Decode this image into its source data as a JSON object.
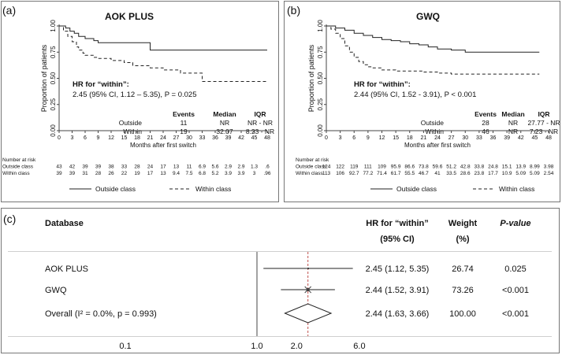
{
  "chart_data": [
    {
      "type": "line",
      "panel_label": "(a)",
      "title": "AOK PLUS",
      "xlabel": "Months after first switch",
      "ylabel": "Proportion of patients",
      "xlim": [
        0,
        48
      ],
      "ylim": [
        0,
        1
      ],
      "x_ticks": [
        "0",
        "3",
        "6",
        "9",
        "12",
        "15",
        "18",
        "21",
        "24",
        "27",
        "30",
        "33",
        "36",
        "39",
        "42",
        "45",
        "48"
      ],
      "y_ticks": [
        "0.00",
        "0.25",
        "0.50",
        "0.75",
        "1.00"
      ],
      "annotation": {
        "line1": "HR for “within”:",
        "line2": "2.45 (95% CI, 1.12 – 5.35), P = 0.025"
      },
      "stats_table": {
        "headers": [
          "Events",
          "Median",
          "IQR"
        ],
        "rows": [
          {
            "label": "Outside",
            "events": "11",
            "median": "NR",
            "iqr": "NR - NR"
          },
          {
            "label": "Within",
            "events": "19",
            "median": "32.07",
            "iqr": "8.23 - NR"
          }
        ]
      },
      "series": [
        {
          "name": "Outside class",
          "style": "solid",
          "x": [
            0,
            1.5,
            2.5,
            3.5,
            4.5,
            6,
            8,
            9,
            12,
            16,
            19,
            21,
            48
          ],
          "y": [
            1.0,
            0.98,
            0.95,
            0.93,
            0.9,
            0.88,
            0.86,
            0.84,
            0.84,
            0.84,
            0.84,
            0.77,
            0.77
          ]
        },
        {
          "name": "Within class",
          "style": "dashed",
          "x": [
            0,
            1,
            2,
            3,
            4,
            4.5,
            5.5,
            6,
            8,
            9,
            12,
            15,
            17,
            21,
            24,
            28,
            33,
            48
          ],
          "y": [
            1.0,
            0.95,
            0.9,
            0.85,
            0.8,
            0.77,
            0.74,
            0.72,
            0.7,
            0.69,
            0.67,
            0.65,
            0.62,
            0.6,
            0.58,
            0.55,
            0.47,
            0.47
          ]
        }
      ],
      "risk_table": {
        "title": "Number at risk",
        "rows": [
          {
            "label": "Outside class",
            "values": [
              "43",
              "42",
              "39",
              "39",
              "38",
              "33",
              "28",
              "24",
              "17",
              "13",
              "11",
              "6.9",
              "5.6",
              "2.9",
              "2.9",
              "1.3",
              ".6"
            ]
          },
          {
            "label": "Within class",
            "values": [
              "39",
              "39",
              "31",
              "28",
              "26",
              "22",
              "19",
              "17",
              "13",
              "9.4",
              "7.5",
              "6.8",
              "5.2",
              "3.9",
              "3.9",
              "3",
              ".96"
            ]
          }
        ]
      },
      "legend": [
        "Outside class",
        "Within class"
      ]
    },
    {
      "type": "line",
      "panel_label": "(b)",
      "title": "GWQ",
      "xlabel": "Months after first switch",
      "ylabel": "Proportion of patients",
      "xlim": [
        0,
        48
      ],
      "ylim": [
        0,
        1
      ],
      "x_ticks": [
        "0",
        "3",
        "6",
        "9",
        "12",
        "15",
        "18",
        "21",
        "24",
        "27",
        "30",
        "33",
        "36",
        "39",
        "42",
        "45",
        "48"
      ],
      "y_ticks": [
        "0.00",
        "0.25",
        "0.50",
        "0.75",
        "1.00"
      ],
      "annotation": {
        "line1": "HR for “within”:",
        "line2": "2.44 (95% CI, 1.52 - 3.91), P < 0.001"
      },
      "stats_table": {
        "headers": [
          "Events",
          "Median",
          "IQR"
        ],
        "rows": [
          {
            "label": "Outside",
            "events": "28",
            "median": "NR",
            "iqr": "27.77 - NR"
          },
          {
            "label": "Within",
            "events": "46",
            "median": "NR",
            "iqr": "7.23 - NR"
          }
        ]
      },
      "series": [
        {
          "name": "Outside class",
          "style": "solid",
          "x": [
            0,
            2,
            4,
            6,
            8,
            10,
            12,
            14,
            16,
            18,
            20,
            22,
            24,
            27,
            30,
            46
          ],
          "y": [
            1.0,
            0.98,
            0.96,
            0.93,
            0.91,
            0.89,
            0.87,
            0.86,
            0.85,
            0.83,
            0.82,
            0.8,
            0.78,
            0.77,
            0.75,
            0.75
          ]
        },
        {
          "name": "Within class",
          "style": "dashed",
          "x": [
            0,
            1,
            2,
            3,
            4,
            5,
            6,
            7,
            8,
            9,
            10,
            12,
            15,
            18,
            21,
            24,
            27,
            46
          ],
          "y": [
            1.0,
            0.97,
            0.93,
            0.88,
            0.81,
            0.75,
            0.7,
            0.66,
            0.63,
            0.61,
            0.6,
            0.58,
            0.57,
            0.57,
            0.56,
            0.55,
            0.54,
            0.54
          ]
        }
      ],
      "risk_table": {
        "title": "Number at risk",
        "rows": [
          {
            "label": "Outside class",
            "values": [
              "124",
              "122",
              "119",
              "111",
              "109",
              "95.9",
              "86.6",
              "73.8",
              "59.6",
              "51.2",
              "42.8",
              "33.8",
              "24.8",
              "15.1",
              "13.9",
              "8.99",
              "3.98"
            ]
          },
          {
            "label": "Within class",
            "values": [
              "113",
              "106",
              "92.7",
              "77.2",
              "71.4",
              "61.7",
              "55.5",
              "46.7",
              "41",
              "33.5",
              "28.6",
              "23.8",
              "17.7",
              "10.9",
              "5.09",
              "5.09",
              "2.54"
            ]
          }
        ]
      },
      "legend": [
        "Outside class",
        "Within class"
      ]
    },
    {
      "type": "forest",
      "panel_label": "(c)",
      "headers": {
        "database": "Database",
        "hr_line1": "HR for “within”",
        "hr_line2": "(95% CI)",
        "weight_line1": "Weight",
        "weight_line2": "(%)",
        "pvalue": "P-value"
      },
      "rows": [
        {
          "label": "AOK PLUS",
          "hr": 2.45,
          "lo": 1.12,
          "hi": 5.35,
          "hr_text": "2.45 (1.12, 5.35)",
          "weight": "26.74",
          "p": "0.025"
        },
        {
          "label": "GWQ",
          "hr": 2.44,
          "lo": 1.52,
          "hi": 3.91,
          "hr_text": "2.44 (1.52, 3.91)",
          "weight": "73.26",
          "p": "<0.001"
        }
      ],
      "overall": {
        "label": "Overall (I² = 0.0%, p = 0.993)",
        "hr": 2.44,
        "lo": 1.63,
        "hi": 3.66,
        "hr_text": "2.44 (1.63, 3.66)",
        "weight": "100.00",
        "p": "<0.001"
      },
      "x_scale": "log",
      "x_ticks": [
        "0.1",
        "1.0",
        "2.0",
        "6.0"
      ]
    }
  ]
}
